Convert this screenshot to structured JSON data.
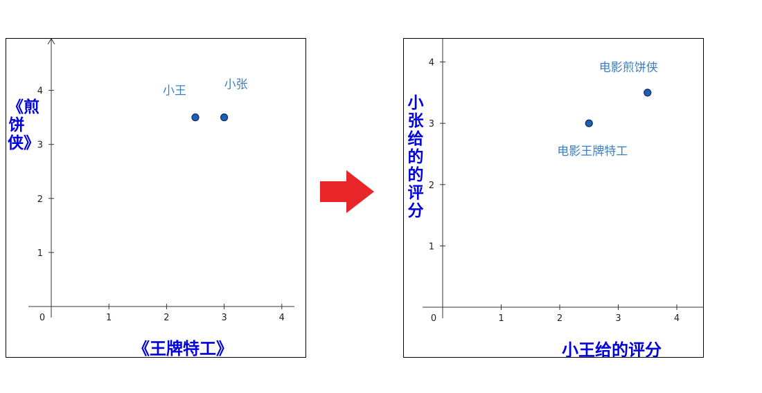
{
  "chart_data": [
    {
      "type": "scatter",
      "title": "",
      "xlabel": "《王牌特工》",
      "ylabel": "《煎饼侠》",
      "xlim": [
        -0.4,
        4.2
      ],
      "ylim": [
        -0.1,
        4.85
      ],
      "x_ticks": [
        0,
        1,
        2,
        3,
        4
      ],
      "y_ticks": [
        1,
        2,
        3,
        4
      ],
      "points": [
        {
          "x": 2.5,
          "y": 3.5,
          "label": "小王"
        },
        {
          "x": 3.0,
          "y": 3.5,
          "label": "小张"
        }
      ],
      "y_axis_arrow": true,
      "grid": false
    },
    {
      "type": "scatter",
      "title": "",
      "xlabel": "小王给的评分",
      "ylabel": "小张给的的评分",
      "xlim": [
        -0.35,
        4.4
      ],
      "ylim": [
        -0.1,
        4.4
      ],
      "x_ticks": [
        0,
        1,
        2,
        3,
        4
      ],
      "y_ticks": [
        1,
        2,
        3,
        4
      ],
      "points": [
        {
          "x": 2.5,
          "y": 3.0,
          "label": "电影王牌特工"
        },
        {
          "x": 3.5,
          "y": 3.5,
          "label": "电影煎饼侠"
        }
      ],
      "y_axis_arrow": false,
      "grid": false
    }
  ],
  "style": {
    "point_fill": "#1f5fb0",
    "point_stroke": "#0b2a66",
    "label_color": "#3a7ec4",
    "axis_title_color": "#0000dd",
    "arrow_color": "#e8262a"
  },
  "arrow_icon": "right-arrow-icon"
}
